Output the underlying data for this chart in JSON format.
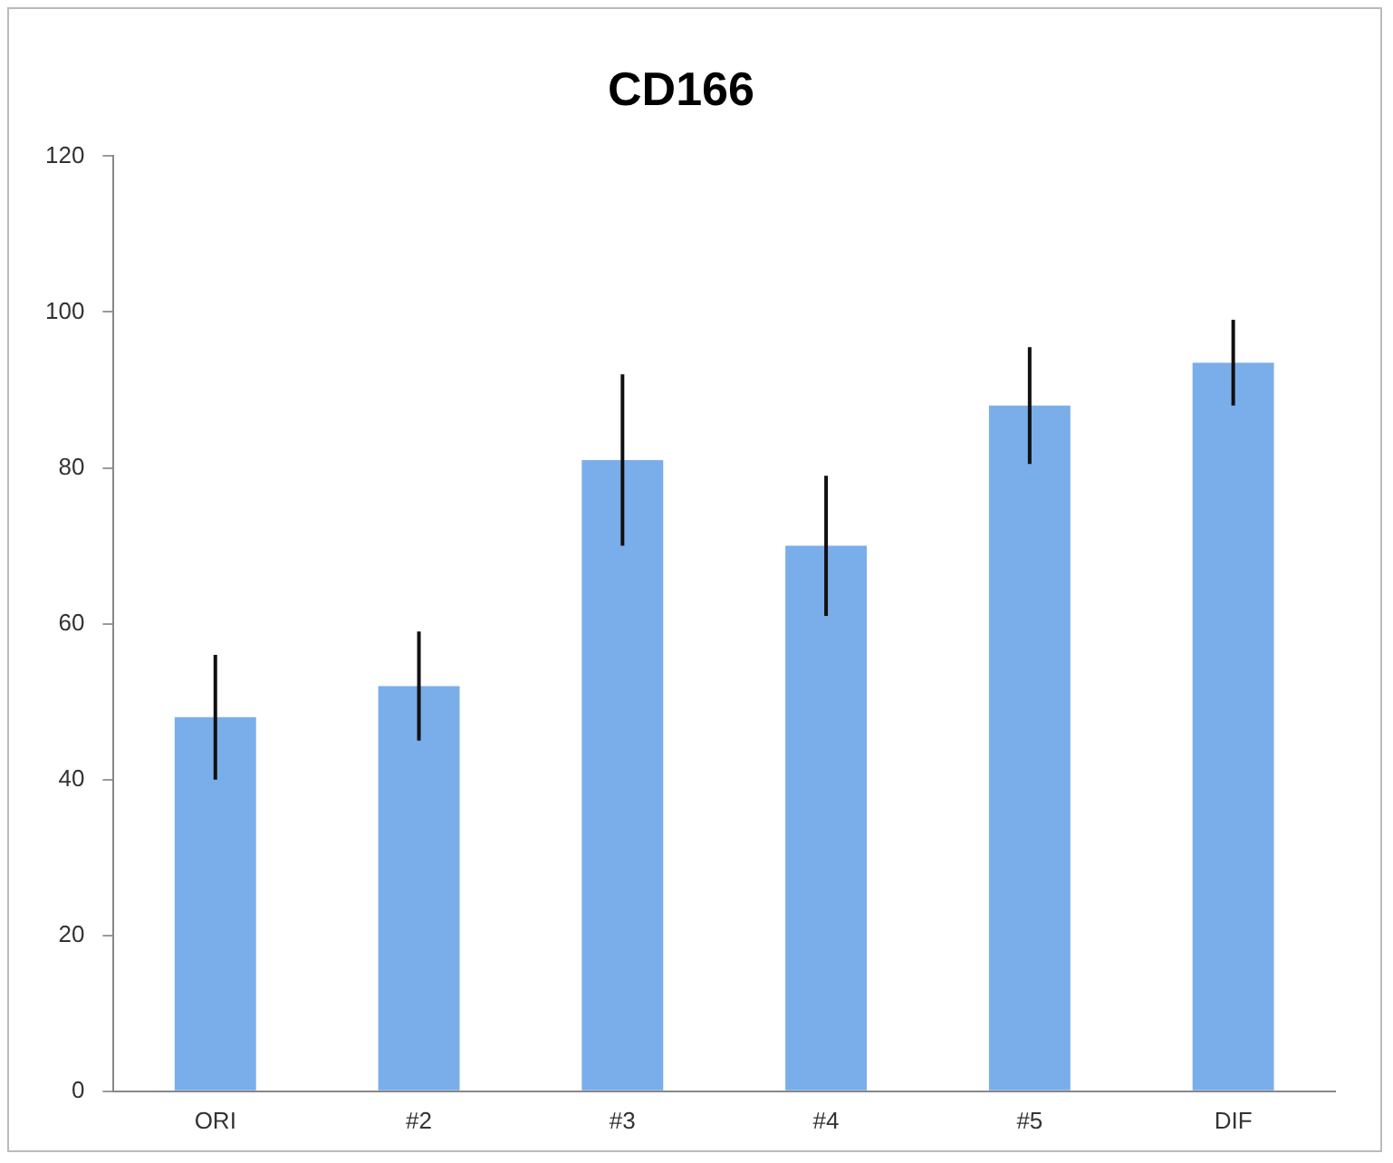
{
  "chart_data": {
    "type": "bar",
    "title": "CD166",
    "categories": [
      "ORI",
      "#2",
      "#3",
      "#4",
      "#5",
      "DIF"
    ],
    "values": [
      48,
      52,
      81,
      70,
      88,
      93.5
    ],
    "errors": [
      8,
      7,
      11,
      9,
      7.5,
      5.5
    ],
    "color": "#7aaeea",
    "ylim": [
      0,
      120
    ],
    "yticks": [
      0,
      20,
      40,
      60,
      80,
      100,
      120
    ],
    "grid": false,
    "legend": false
  }
}
